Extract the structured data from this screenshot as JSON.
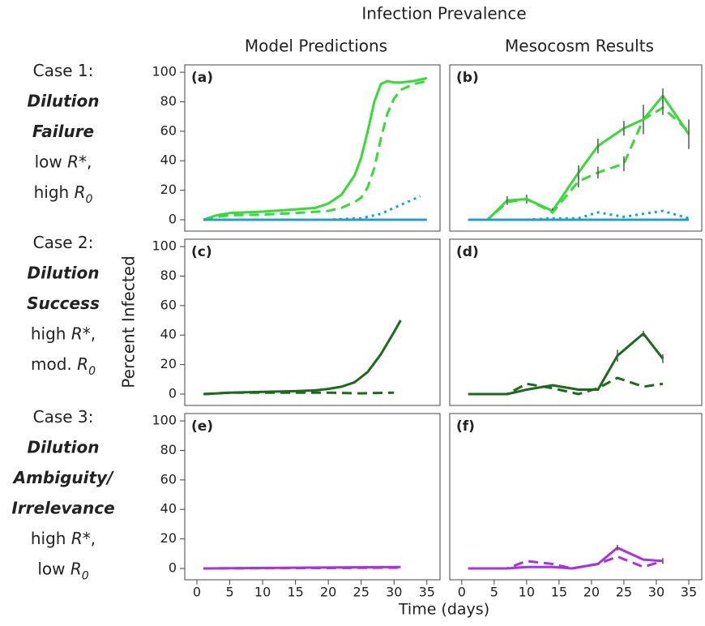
{
  "title": "Infection Prevalence",
  "column_titles": [
    "Model Predictions",
    "Mesocosm Results"
  ],
  "y_label": "Percent Infected",
  "x_label": "Time (days)",
  "row_labels": [
    [
      [
        {
          "text": "Case 1:"
        }
      ],
      [
        {
          "text": "Dilution",
          "bold": true,
          "italic": true
        }
      ],
      [
        {
          "text": "Failure",
          "bold": true,
          "italic": true
        }
      ],
      [
        {
          "text": "low "
        },
        {
          "text": "R*",
          "italic": true
        },
        {
          "text": ","
        }
      ],
      [
        {
          "text": "high "
        },
        {
          "text": "R",
          "italic": true
        },
        {
          "text": "0",
          "italic": true,
          "sub": true
        }
      ]
    ],
    [
      [
        {
          "text": "Case 2:"
        }
      ],
      [
        {
          "text": "Dilution",
          "bold": true,
          "italic": true
        }
      ],
      [
        {
          "text": "Success",
          "bold": true,
          "italic": true
        }
      ],
      [
        {
          "text": "high "
        },
        {
          "text": "R*",
          "italic": true
        },
        {
          "text": ","
        }
      ],
      [
        {
          "text": "mod. "
        },
        {
          "text": "R",
          "italic": true
        },
        {
          "text": "0",
          "italic": true,
          "sub": true
        }
      ]
    ],
    [
      [
        {
          "text": "Case 3:"
        }
      ],
      [
        {
          "text": "Dilution",
          "bold": true,
          "italic": true
        }
      ],
      [
        {
          "text": "Ambiguity/",
          "bold": true,
          "italic": true
        }
      ],
      [
        {
          "text": "Irrelevance",
          "bold": true,
          "italic": true
        }
      ],
      [
        {
          "text": "high "
        },
        {
          "text": "R*",
          "italic": true
        },
        {
          "text": ","
        }
      ],
      [
        {
          "text": "low "
        },
        {
          "text": "R",
          "italic": true
        },
        {
          "text": "0",
          "italic": true,
          "sub": true
        }
      ]
    ]
  ],
  "chart_data": [
    {
      "type": "line",
      "label": "(a)",
      "xlim": [
        -1.85,
        37
      ],
      "ylim": [
        -7.7,
        105
      ],
      "yticks": [
        0,
        20,
        40,
        60,
        80,
        100
      ],
      "series": [
        {
          "color": "#33dd33",
          "dash": "solid",
          "x": [
            1,
            3,
            5,
            10,
            15,
            18,
            20,
            22,
            24,
            25,
            26,
            27,
            28,
            29,
            30,
            31,
            33,
            35
          ],
          "values": [
            0,
            3,
            4.5,
            5.5,
            7,
            8,
            11,
            17,
            30,
            42,
            60,
            80,
            92,
            94,
            93,
            93,
            94,
            96
          ]
        },
        {
          "color": "#33dd33",
          "dash": "dashed",
          "x": [
            1,
            3,
            5,
            10,
            15,
            20,
            22,
            24,
            25,
            26,
            27,
            28,
            29,
            30,
            31,
            33,
            35
          ],
          "values": [
            0,
            2,
            3,
            3.5,
            4.5,
            6,
            8,
            12,
            15,
            22,
            35,
            55,
            72,
            82,
            88,
            92,
            94
          ]
        },
        {
          "color": "#1f9fd0",
          "dash": "dotted",
          "x": [
            1,
            20,
            25,
            28,
            30,
            32,
            34
          ],
          "values": [
            0,
            0,
            1,
            4,
            8,
            12,
            16
          ]
        },
        {
          "color": "#1f9fd0",
          "dash": "solid",
          "x": [
            1,
            35
          ],
          "values": [
            0,
            0
          ]
        }
      ]
    },
    {
      "type": "line",
      "label": "(b)",
      "xlim": [
        -1.85,
        37
      ],
      "ylim": [
        -7.7,
        105
      ],
      "series": [
        {
          "color": "#33dd33",
          "dash": "solid",
          "x": [
            1,
            4,
            7,
            10,
            14,
            18,
            21,
            25,
            28,
            31,
            35
          ],
          "values": [
            0,
            0,
            13,
            14,
            6,
            32,
            50,
            62,
            68,
            84,
            58
          ],
          "errors": [
            null,
            null,
            3,
            3,
            2,
            5,
            5,
            5,
            10,
            5,
            10
          ]
        },
        {
          "color": "#33dd33",
          "dash": "dashed",
          "x": [
            1,
            4,
            7,
            10,
            14,
            18,
            21,
            25,
            28,
            31,
            35
          ],
          "values": [
            0,
            0,
            12,
            14,
            5,
            26,
            32,
            38,
            68,
            76,
            60
          ],
          "errors": [
            null,
            null,
            null,
            null,
            null,
            4,
            4,
            5,
            null,
            5,
            null
          ]
        },
        {
          "color": "#1f9fd0",
          "dash": "dotted",
          "x": [
            1,
            4,
            7,
            10,
            14,
            18,
            21,
            25,
            28,
            31,
            35
          ],
          "values": [
            0,
            0,
            0,
            0,
            1,
            1,
            5,
            2,
            4,
            6,
            1
          ]
        },
        {
          "color": "#1f9fd0",
          "dash": "solid",
          "x": [
            1,
            35
          ],
          "values": [
            0,
            0
          ]
        }
      ]
    },
    {
      "type": "line",
      "label": "(c)",
      "xlim": [
        -1.85,
        37
      ],
      "ylim": [
        -7.7,
        105
      ],
      "yticks": [
        0,
        20,
        40,
        60,
        80,
        100
      ],
      "series": [
        {
          "color": "#1a6b1a",
          "dash": "solid",
          "x": [
            1,
            5,
            10,
            15,
            18,
            20,
            22,
            24,
            26,
            28,
            30,
            31
          ],
          "values": [
            0,
            1,
            1.5,
            2,
            2.5,
            3.5,
            5,
            8,
            15,
            27,
            42,
            50
          ]
        },
        {
          "color": "#1a6b1a",
          "dash": "dashed",
          "x": [
            1,
            5,
            10,
            15,
            20,
            25,
            30
          ],
          "values": [
            0,
            1,
            1,
            1,
            1,
            0.5,
            1
          ]
        }
      ]
    },
    {
      "type": "line",
      "label": "(d)",
      "xlim": [
        -1.85,
        37
      ],
      "ylim": [
        -7.7,
        105
      ],
      "series": [
        {
          "color": "#1a6b1a",
          "dash": "solid",
          "x": [
            1,
            7,
            10,
            14,
            18,
            21,
            24,
            28,
            31
          ],
          "values": [
            0,
            0,
            3,
            6,
            3,
            3,
            26,
            41,
            24
          ],
          "errors": [
            null,
            null,
            null,
            null,
            null,
            null,
            4,
            2,
            3
          ]
        },
        {
          "color": "#1a6b1a",
          "dash": "dashed",
          "x": [
            1,
            7,
            10,
            14,
            18,
            21,
            24,
            28,
            31
          ],
          "values": [
            0,
            0,
            7,
            4,
            0,
            4,
            11,
            5,
            7
          ]
        }
      ]
    },
    {
      "type": "line",
      "label": "(e)",
      "xlim": [
        -1.85,
        37
      ],
      "ylim": [
        -7.7,
        105
      ],
      "yticks": [
        0,
        20,
        40,
        60,
        80,
        100
      ],
      "xticks": [
        0,
        5,
        10,
        15,
        20,
        25,
        30,
        35
      ],
      "series": [
        {
          "color": "#a733e6",
          "dash": "solid",
          "x": [
            1,
            31
          ],
          "values": [
            0,
            1
          ]
        },
        {
          "color": "#a733e6",
          "dash": "dashed",
          "x": [
            1,
            31
          ],
          "values": [
            0,
            0.5
          ]
        }
      ]
    },
    {
      "type": "line",
      "label": "(f)",
      "xlim": [
        -1.85,
        37
      ],
      "ylim": [
        -7.7,
        105
      ],
      "xticks": [
        0,
        5,
        10,
        15,
        20,
        25,
        30,
        35
      ],
      "series": [
        {
          "color": "#a733e6",
          "dash": "solid",
          "x": [
            1,
            7,
            10,
            14,
            17,
            21,
            24,
            28,
            31
          ],
          "values": [
            0,
            0,
            1,
            1,
            0,
            3,
            14,
            6,
            5
          ],
          "errors": [
            null,
            null,
            null,
            null,
            null,
            null,
            2,
            null,
            2
          ]
        },
        {
          "color": "#a733e6",
          "dash": "dashed",
          "x": [
            1,
            7,
            10,
            14,
            17,
            21,
            24,
            28,
            31
          ],
          "values": [
            0,
            0,
            5,
            3,
            0,
            3,
            8,
            1,
            5
          ]
        }
      ]
    }
  ]
}
